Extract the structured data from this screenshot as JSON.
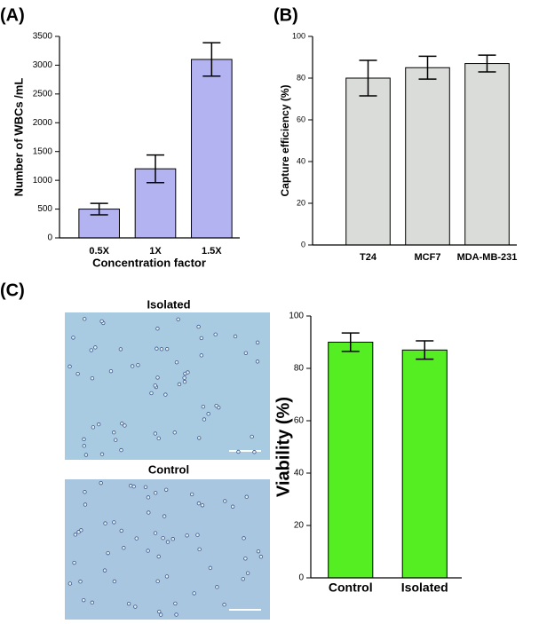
{
  "chart_data": [
    {
      "type": "bar",
      "panel": "(A)",
      "categories": [
        "0.5X",
        "1X",
        "1.5X"
      ],
      "values": [
        500,
        1200,
        3100
      ],
      "errors": [
        100,
        240,
        290
      ],
      "color": "#b3b3f2",
      "xlabel": "Concentration factor",
      "ylabel": "Number of WBCs /mL",
      "ylim": [
        0,
        3500
      ],
      "yticks": [
        0,
        500,
        1000,
        1500,
        2000,
        2500,
        3000,
        3500
      ],
      "grid": false
    },
    {
      "type": "bar",
      "panel": "(B)",
      "categories": [
        "T24",
        "MCF7",
        "MDA-MB-231"
      ],
      "values": [
        80,
        85,
        87
      ],
      "errors": [
        8.5,
        5.5,
        4
      ],
      "color": "#d9dcd8",
      "ylabel": "Capture efficiency (%)",
      "ylim": [
        0,
        100
      ],
      "yticks": [
        0,
        20,
        40,
        60,
        80,
        100
      ],
      "grid": false
    },
    {
      "type": "bar",
      "panel": "(C)",
      "categories": [
        "Control",
        "Isolated"
      ],
      "values": [
        90,
        87
      ],
      "errors": [
        3.5,
        3.5
      ],
      "color": "#55ee22",
      "ylabel": "Viability (%)",
      "ylim": [
        0,
        100
      ],
      "yticks": [
        0,
        20,
        40,
        60,
        80,
        100
      ],
      "grid": false
    }
  ],
  "images": [
    {
      "label": "Isolated"
    },
    {
      "label": "Control"
    }
  ]
}
